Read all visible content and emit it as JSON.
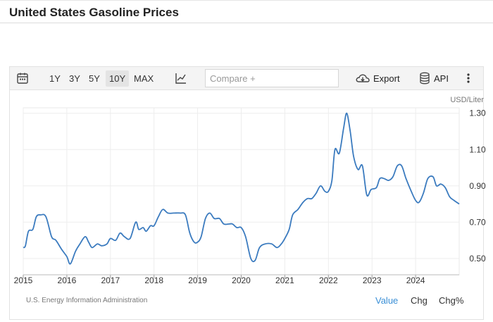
{
  "page": {
    "title": "United States Gasoline Prices"
  },
  "toolbar": {
    "ranges": [
      "1Y",
      "3Y",
      "5Y",
      "10Y",
      "MAX"
    ],
    "active_range": "10Y",
    "compare_placeholder": "Compare +",
    "export_label": "Export",
    "api_label": "API"
  },
  "icons": {
    "calendar": "calendar-icon",
    "chart_type": "line-chart-icon",
    "export": "cloud-download-icon",
    "api": "database-icon",
    "more": "more-vertical-icon"
  },
  "colors": {
    "line": "#3b7bbf",
    "active_tab": "#3a8fd6"
  },
  "footer": {
    "source": "U.S. Energy Information Administration",
    "views": [
      "Value",
      "Chg",
      "Chg%"
    ],
    "active_view": "Value"
  },
  "chart_data": {
    "type": "line",
    "unit": "USD/Liter",
    "x_ticks": [
      "2015",
      "2016",
      "2017",
      "2018",
      "2019",
      "2020",
      "2021",
      "2022",
      "2023",
      "2024"
    ],
    "y_ticks": [
      "0.50",
      "0.70",
      "0.90",
      "1.10",
      "1.30"
    ],
    "ylim": [
      0.41,
      1.33
    ],
    "xlim": [
      2015.0,
      2025.0
    ],
    "grid": true,
    "y_axis_side": "right",
    "series": [
      {
        "points": [
          [
            2015.0,
            0.56
          ],
          [
            2015.05,
            0.57
          ],
          [
            2015.12,
            0.65
          ],
          [
            2015.22,
            0.66
          ],
          [
            2015.3,
            0.73
          ],
          [
            2015.4,
            0.74
          ],
          [
            2015.52,
            0.73
          ],
          [
            2015.65,
            0.62
          ],
          [
            2015.75,
            0.6
          ],
          [
            2015.88,
            0.55
          ],
          [
            2016.0,
            0.51
          ],
          [
            2016.08,
            0.47
          ],
          [
            2016.2,
            0.54
          ],
          [
            2016.3,
            0.58
          ],
          [
            2016.42,
            0.62
          ],
          [
            2016.5,
            0.59
          ],
          [
            2016.58,
            0.56
          ],
          [
            2016.7,
            0.58
          ],
          [
            2016.8,
            0.57
          ],
          [
            2016.92,
            0.58
          ],
          [
            2017.0,
            0.61
          ],
          [
            2017.12,
            0.6
          ],
          [
            2017.22,
            0.64
          ],
          [
            2017.32,
            0.62
          ],
          [
            2017.45,
            0.61
          ],
          [
            2017.58,
            0.7
          ],
          [
            2017.65,
            0.66
          ],
          [
            2017.75,
            0.67
          ],
          [
            2017.82,
            0.65
          ],
          [
            2017.92,
            0.68
          ],
          [
            2018.0,
            0.68
          ],
          [
            2018.1,
            0.73
          ],
          [
            2018.2,
            0.77
          ],
          [
            2018.32,
            0.75
          ],
          [
            2018.45,
            0.75
          ],
          [
            2018.6,
            0.75
          ],
          [
            2018.72,
            0.74
          ],
          [
            2018.82,
            0.64
          ],
          [
            2018.92,
            0.59
          ],
          [
            2019.0,
            0.59
          ],
          [
            2019.08,
            0.62
          ],
          [
            2019.18,
            0.72
          ],
          [
            2019.28,
            0.75
          ],
          [
            2019.38,
            0.72
          ],
          [
            2019.5,
            0.72
          ],
          [
            2019.6,
            0.69
          ],
          [
            2019.72,
            0.69
          ],
          [
            2019.8,
            0.69
          ],
          [
            2019.9,
            0.67
          ],
          [
            2020.0,
            0.67
          ],
          [
            2020.1,
            0.62
          ],
          [
            2020.22,
            0.5
          ],
          [
            2020.32,
            0.49
          ],
          [
            2020.42,
            0.56
          ],
          [
            2020.55,
            0.58
          ],
          [
            2020.7,
            0.58
          ],
          [
            2020.82,
            0.56
          ],
          [
            2020.92,
            0.58
          ],
          [
            2021.0,
            0.61
          ],
          [
            2021.1,
            0.66
          ],
          [
            2021.18,
            0.74
          ],
          [
            2021.3,
            0.77
          ],
          [
            2021.42,
            0.81
          ],
          [
            2021.52,
            0.83
          ],
          [
            2021.62,
            0.83
          ],
          [
            2021.72,
            0.86
          ],
          [
            2021.82,
            0.9
          ],
          [
            2021.92,
            0.87
          ],
          [
            2022.0,
            0.87
          ],
          [
            2022.08,
            0.93
          ],
          [
            2022.15,
            1.1
          ],
          [
            2022.25,
            1.08
          ],
          [
            2022.35,
            1.22
          ],
          [
            2022.42,
            1.3
          ],
          [
            2022.5,
            1.2
          ],
          [
            2022.58,
            1.06
          ],
          [
            2022.68,
            0.99
          ],
          [
            2022.78,
            1.01
          ],
          [
            2022.88,
            0.85
          ],
          [
            2022.98,
            0.88
          ],
          [
            2023.1,
            0.89
          ],
          [
            2023.18,
            0.94
          ],
          [
            2023.28,
            0.94
          ],
          [
            2023.38,
            0.93
          ],
          [
            2023.48,
            0.95
          ],
          [
            2023.58,
            1.01
          ],
          [
            2023.68,
            1.01
          ],
          [
            2023.78,
            0.94
          ],
          [
            2023.9,
            0.87
          ],
          [
            2024.0,
            0.82
          ],
          [
            2024.08,
            0.81
          ],
          [
            2024.18,
            0.86
          ],
          [
            2024.28,
            0.94
          ],
          [
            2024.4,
            0.95
          ],
          [
            2024.48,
            0.9
          ],
          [
            2024.58,
            0.91
          ],
          [
            2024.68,
            0.89
          ],
          [
            2024.78,
            0.84
          ],
          [
            2024.88,
            0.82
          ],
          [
            2025.0,
            0.8
          ]
        ]
      }
    ]
  }
}
